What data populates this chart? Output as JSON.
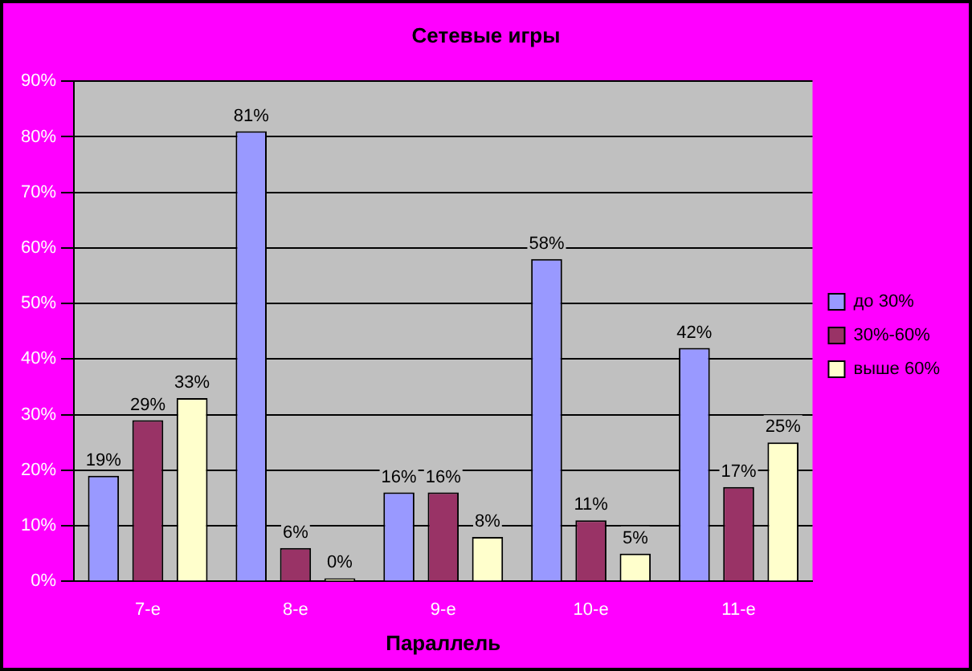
{
  "chart_data": {
    "type": "bar",
    "title": "Сетевые игры",
    "xlabel": "Параллель",
    "categories": [
      "7-е",
      "8-е",
      "9-е",
      "10-е",
      "11-е"
    ],
    "series": [
      {
        "name": "до 30%",
        "color": "#9999ff",
        "values": [
          19,
          81,
          16,
          58,
          42
        ],
        "value_labels": [
          "19%",
          "81%",
          "16%",
          "58%",
          "42%"
        ]
      },
      {
        "name": "30%-60%",
        "color": "#993366",
        "values": [
          29,
          6,
          16,
          11,
          17
        ],
        "value_labels": [
          "29%",
          "6%",
          "16%",
          "11%",
          "17%"
        ]
      },
      {
        "name": "выше 60%",
        "color": "#ffffcc",
        "values": [
          33,
          0,
          8,
          5,
          25
        ],
        "value_labels": [
          "33%",
          "0%",
          "8%",
          "5%",
          "25%"
        ]
      }
    ],
    "ylim": [
      0,
      90
    ],
    "yticks": [
      {
        "value": 0,
        "label": "0%"
      },
      {
        "value": 10,
        "label": "10%"
      },
      {
        "value": 20,
        "label": "20%"
      },
      {
        "value": 30,
        "label": "30%"
      },
      {
        "value": 40,
        "label": "40%"
      },
      {
        "value": 50,
        "label": "50%"
      },
      {
        "value": 60,
        "label": "60%"
      },
      {
        "value": 70,
        "label": "70%"
      },
      {
        "value": 80,
        "label": "80%"
      },
      {
        "value": 90,
        "label": "90%"
      }
    ],
    "grid": "y",
    "legend": "right"
  }
}
